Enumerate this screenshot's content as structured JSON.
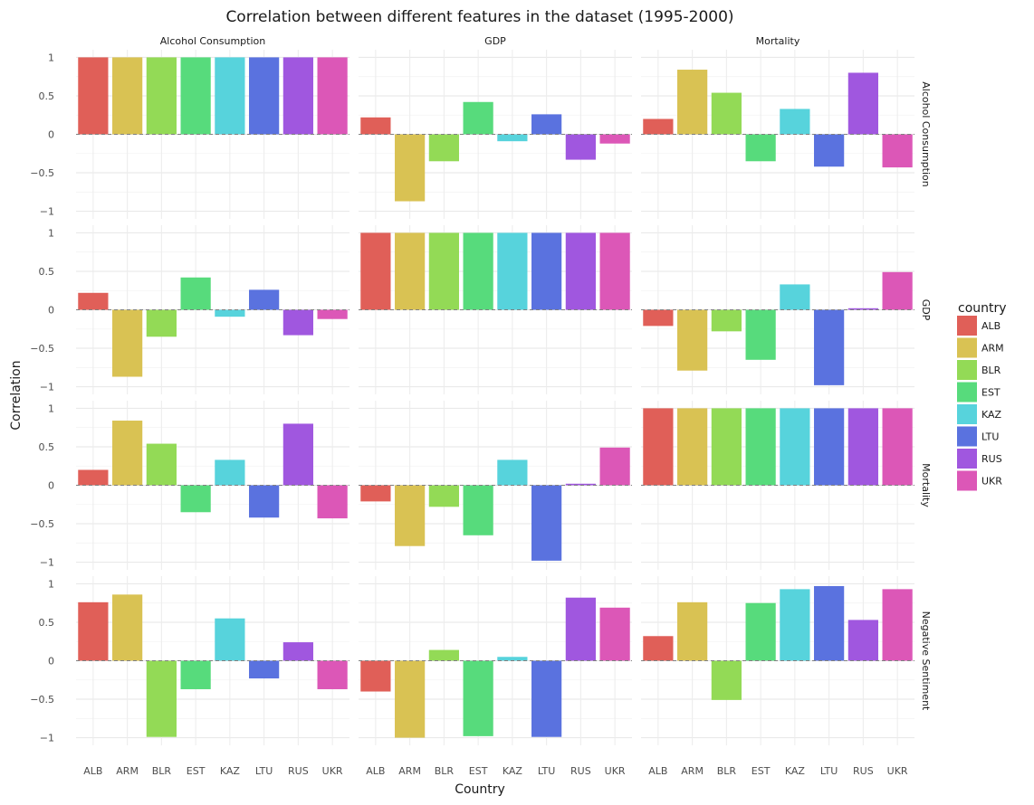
{
  "chart_data": {
    "type": "bar",
    "title": "Correlation between different features in the dataset (1995-2000)",
    "xlabel": "Country",
    "ylabel": "Correlation",
    "ylim": [
      -1,
      1
    ],
    "yticks": [
      1,
      0.5,
      0,
      -0.5,
      -1
    ],
    "ytick_labels": [
      "1",
      "0.5",
      "0",
      "−0.5",
      "−1"
    ],
    "categories": [
      "ALB",
      "ARM",
      "BLR",
      "EST",
      "KAZ",
      "LTU",
      "RUS",
      "UKR"
    ],
    "col_facets": [
      "Alcohol Consumption",
      "GDP",
      "Mortality"
    ],
    "row_facets": [
      "Alcohol Consumption",
      "GDP",
      "Mortality",
      "Negative Sentiment"
    ],
    "legend": {
      "title": "country",
      "position": "right",
      "entries": [
        "ALB",
        "ARM",
        "BLR",
        "EST",
        "KAZ",
        "LTU",
        "RUS",
        "UKR"
      ]
    },
    "colors": {
      "ALB": "#e05f58",
      "ARM": "#d9c253",
      "BLR": "#93da56",
      "EST": "#57db7c",
      "KAZ": "#57d3dc",
      "LTU": "#5a72df",
      "RUS": "#a057df",
      "UKR": "#dc57b7"
    },
    "grid": true,
    "zero_line": "dashed",
    "panels": [
      [
        [
          1,
          1,
          1,
          1,
          1,
          1,
          1,
          1
        ],
        [
          0.22,
          -0.87,
          -0.35,
          0.42,
          -0.09,
          0.26,
          -0.33,
          -0.12
        ],
        [
          0.2,
          0.84,
          0.54,
          -0.35,
          0.33,
          -0.42,
          0.8,
          -0.43
        ]
      ],
      [
        [
          0.22,
          -0.87,
          -0.35,
          0.42,
          -0.09,
          0.26,
          -0.33,
          -0.12
        ],
        [
          1,
          1,
          1,
          1,
          1,
          1,
          1,
          1
        ],
        [
          -0.21,
          -0.79,
          -0.28,
          -0.65,
          0.33,
          -0.98,
          0.02,
          0.49
        ]
      ],
      [
        [
          0.2,
          0.84,
          0.54,
          -0.35,
          0.33,
          -0.42,
          0.8,
          -0.43
        ],
        [
          -0.21,
          -0.79,
          -0.28,
          -0.65,
          0.33,
          -0.98,
          0.02,
          0.49
        ],
        [
          1,
          1,
          1,
          1,
          1,
          1,
          1,
          1
        ]
      ],
      [
        [
          0.76,
          0.86,
          -0.99,
          -0.37,
          0.55,
          -0.23,
          0.24,
          -0.37
        ],
        [
          -0.4,
          -1.0,
          0.14,
          -0.98,
          0.05,
          -0.99,
          0.82,
          0.69
        ],
        [
          0.32,
          0.76,
          -0.51,
          0.75,
          0.93,
          0.97,
          0.53,
          0.93
        ]
      ]
    ]
  }
}
